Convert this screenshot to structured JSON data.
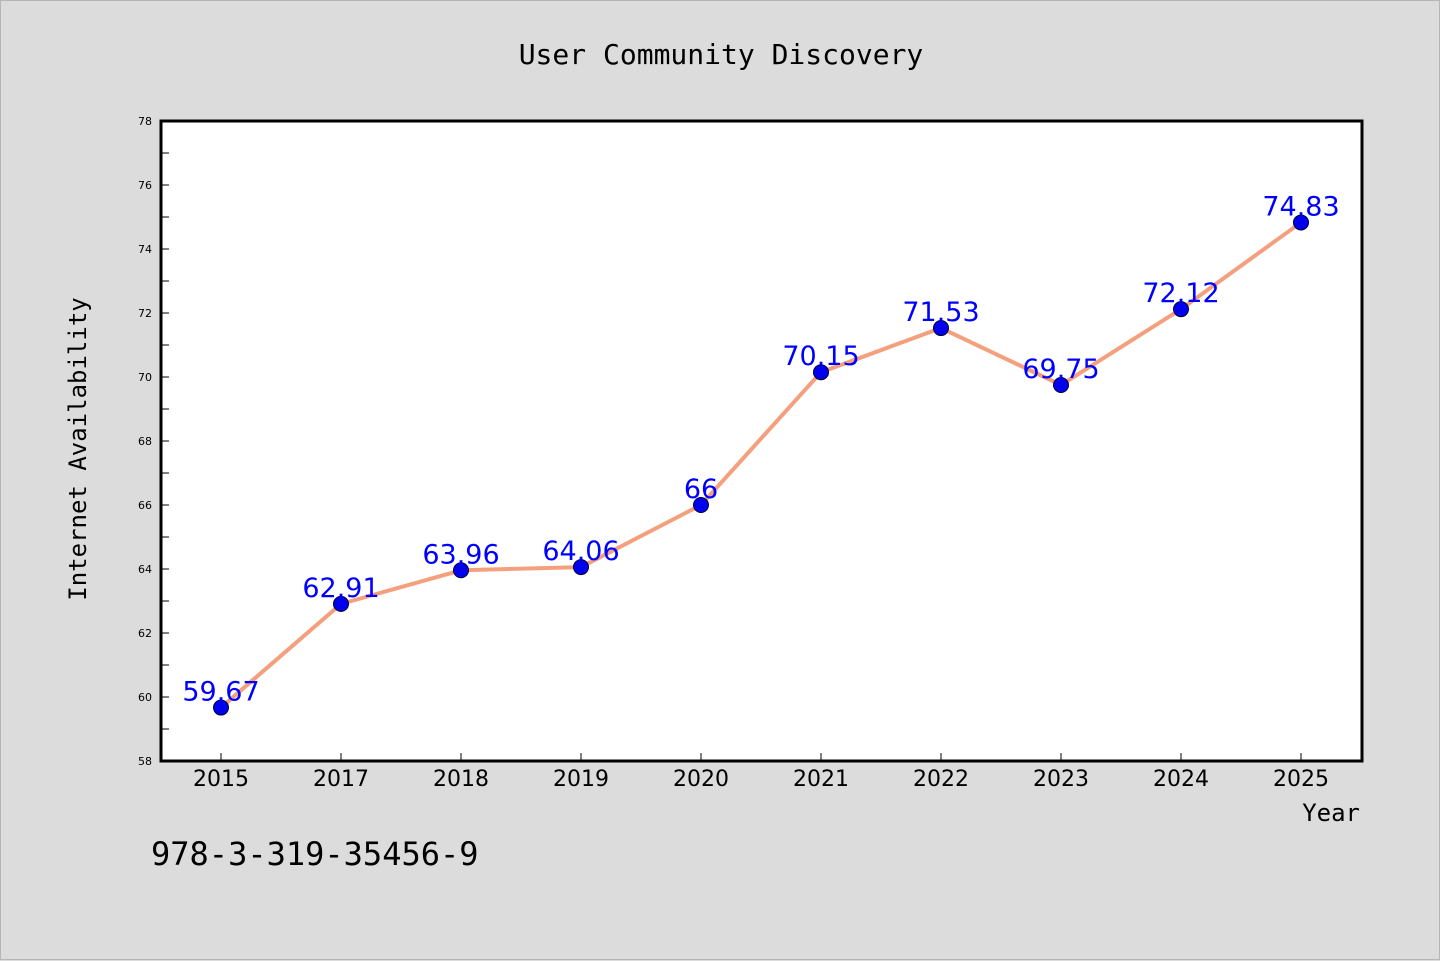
{
  "chart_data": {
    "type": "line",
    "title": "User Community Discovery",
    "xlabel": "Year",
    "ylabel": "Internet Availability",
    "categories": [
      "2015",
      "2017",
      "2018",
      "2019",
      "2020",
      "2021",
      "2022",
      "2023",
      "2024",
      "2025"
    ],
    "series": [
      {
        "values": [
          59.67,
          62.91,
          63.96,
          64.06,
          66,
          70.15,
          71.53,
          69.75,
          72.12,
          74.83
        ],
        "labels": [
          "59.67",
          "62.91",
          "63.96",
          "64.06",
          "66",
          "70.15",
          "71.53",
          "69.75",
          "72.12",
          "74.83"
        ],
        "line_color": "#f4a07f",
        "marker_color": "#0000ee"
      }
    ],
    "ylim": [
      58,
      78
    ],
    "yticks": [
      "58",
      "60",
      "62",
      "64",
      "66",
      "68",
      "70",
      "72",
      "74",
      "76",
      "78"
    ],
    "grid": false,
    "data_label_color": "#0000ff"
  },
  "footnote": "978-3-319-35456-9"
}
